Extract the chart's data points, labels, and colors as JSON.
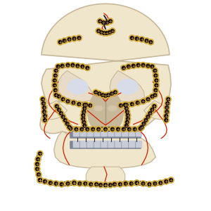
{
  "bg_color": "#ffffff",
  "skull_color": "#f0e6cc",
  "skull_edge": "#c8b89a",
  "orbit_color": "#e8dcc8",
  "nasal_color": "#d4c4a8",
  "plate_gold": "#c8a832",
  "plate_dark": "#2a1a08",
  "screw_gold": "#d4b040",
  "screw_dark": "#1a0a00",
  "red_line": "#cc2200",
  "metal_plate": "#808898",
  "metal_light": "#c8ccd8",
  "teeth_color": "#e8e8e8",
  "wire_color": "#1a1a2a",
  "figsize": [
    3.0,
    3.0
  ],
  "dpi": 100
}
